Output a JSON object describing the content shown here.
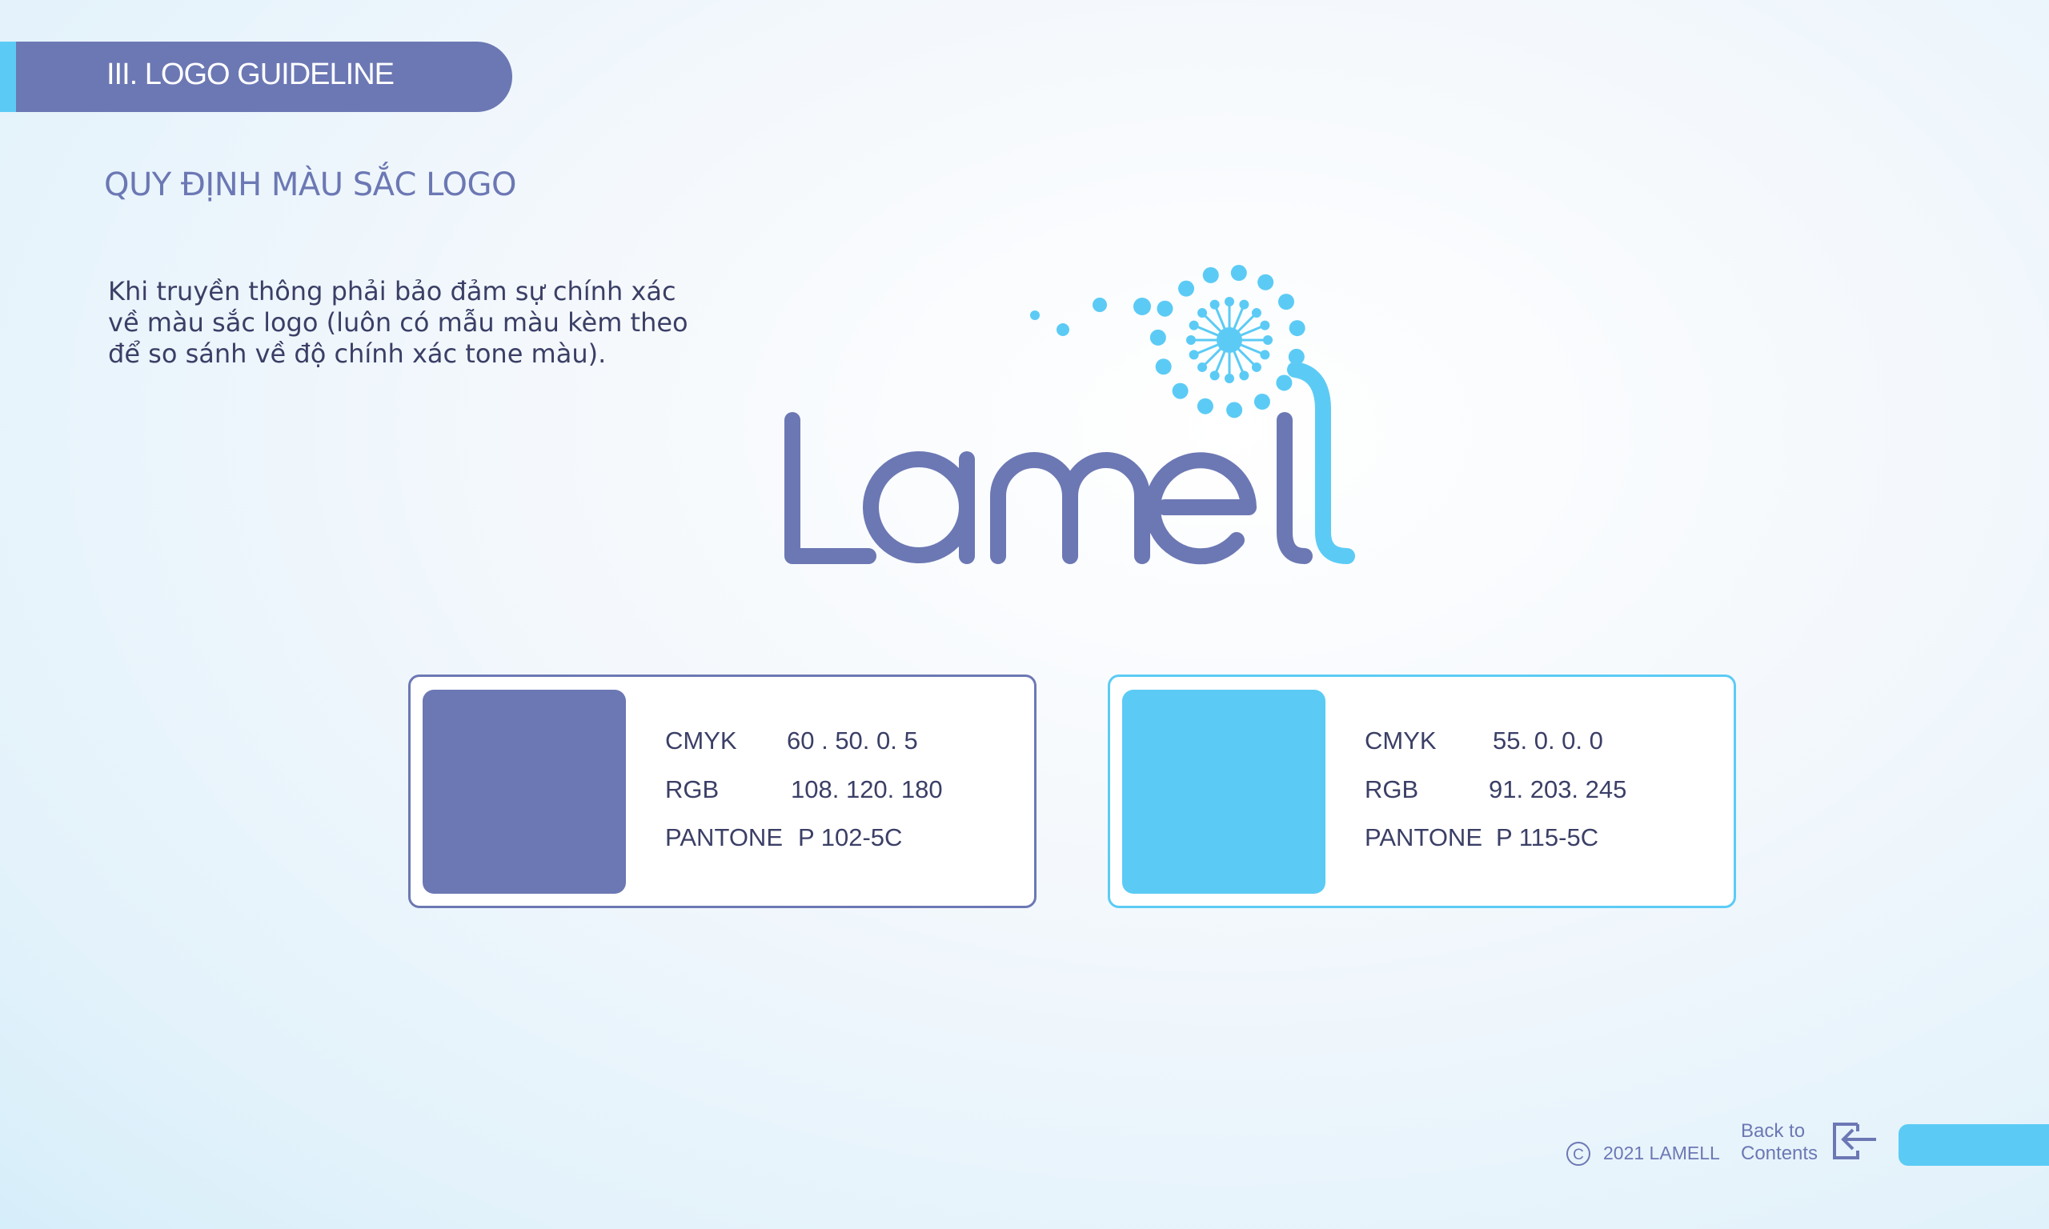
{
  "header": {
    "title": "III. LOGO GUIDELINE"
  },
  "subtitle": "QUY ĐỊNH MÀU SẮC LOGO",
  "description": [
    "Khi truyền thông phải bảo đảm sự chính xác",
    "về màu sắc logo (luôn có mẫu màu kèm theo",
    "để so sánh về độ chính xác tone màu)."
  ],
  "logo": {
    "text": "Lamell",
    "primary_color": "#6c78b4",
    "accent_color": "#5bcbf5"
  },
  "swatches": [
    {
      "color": "#6c78b4",
      "cmyk_label": "CMYK",
      "cmyk": "60 . 50. 0. 5",
      "rgb_label": "RGB",
      "rgb": "108. 120. 180",
      "pantone_label": "PANTONE",
      "pantone": "P 102-5C"
    },
    {
      "color": "#5bcbf5",
      "cmyk_label": "CMYK",
      "cmyk": "55. 0. 0. 0",
      "rgb_label": "RGB",
      "rgb": "91. 203. 245",
      "pantone_label": "PANTONE",
      "pantone": "P 115-5C"
    }
  ],
  "footer": {
    "copyright": "2021 LAMELL",
    "back_line1": "Back to",
    "back_line2": "Contents",
    "back_icon": "exit-arrow-icon"
  }
}
